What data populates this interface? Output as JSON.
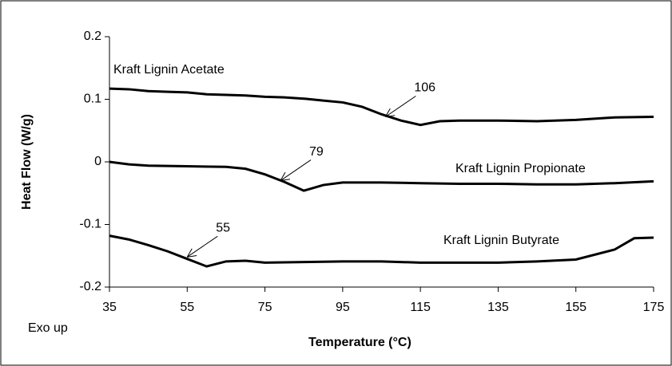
{
  "chart_data": {
    "type": "line",
    "x_label": "Temperature (°C)",
    "y_label": "Heat Flow (W/g)",
    "note": "Exo up",
    "xlim": [
      35,
      175
    ],
    "xticks": [
      35,
      55,
      75,
      95,
      115,
      135,
      155,
      175
    ],
    "ylim": [
      -0.2,
      0.2
    ],
    "yticks": [
      0.2,
      0.1,
      0,
      -0.1,
      -0.2
    ],
    "grid": false,
    "series": [
      {
        "name": "Kraft Lignin Acetate",
        "color": "#000000",
        "x": [
          35,
          40,
          45,
          50,
          55,
          60,
          65,
          70,
          75,
          80,
          85,
          90,
          95,
          100,
          105,
          110,
          115,
          120,
          125,
          135,
          145,
          155,
          165,
          175
        ],
        "values": [
          0.117,
          0.116,
          0.113,
          0.112,
          0.111,
          0.108,
          0.107,
          0.106,
          0.104,
          0.103,
          0.101,
          0.098,
          0.095,
          0.088,
          0.076,
          0.066,
          0.059,
          0.065,
          0.066,
          0.066,
          0.065,
          0.067,
          0.071,
          0.072
        ]
      },
      {
        "name": "Kraft Lignin Propionate",
        "color": "#000000",
        "x": [
          35,
          40,
          45,
          55,
          65,
          70,
          75,
          80,
          85,
          90,
          95,
          105,
          115,
          125,
          135,
          145,
          155,
          165,
          175
        ],
        "values": [
          0.0,
          -0.004,
          -0.006,
          -0.007,
          -0.008,
          -0.011,
          -0.02,
          -0.032,
          -0.046,
          -0.037,
          -0.033,
          -0.033,
          -0.034,
          -0.035,
          -0.035,
          -0.036,
          -0.036,
          -0.034,
          -0.031
        ]
      },
      {
        "name": "Kraft Lignin Butyrate",
        "color": "#000000",
        "x": [
          35,
          40,
          45,
          50,
          55,
          60,
          65,
          70,
          75,
          85,
          95,
          105,
          115,
          125,
          135,
          145,
          155,
          165,
          170,
          175
        ],
        "values": [
          -0.118,
          -0.124,
          -0.133,
          -0.143,
          -0.155,
          -0.167,
          -0.159,
          -0.158,
          -0.161,
          -0.16,
          -0.159,
          -0.159,
          -0.161,
          -0.161,
          -0.161,
          -0.159,
          -0.156,
          -0.14,
          -0.122,
          -0.121
        ]
      }
    ],
    "annotations": [
      {
        "text": "106",
        "x": 106,
        "y": 0.072
      },
      {
        "text": "79",
        "x": 79,
        "y": -0.03
      },
      {
        "text": "55",
        "x": 55,
        "y": -0.152
      }
    ]
  }
}
